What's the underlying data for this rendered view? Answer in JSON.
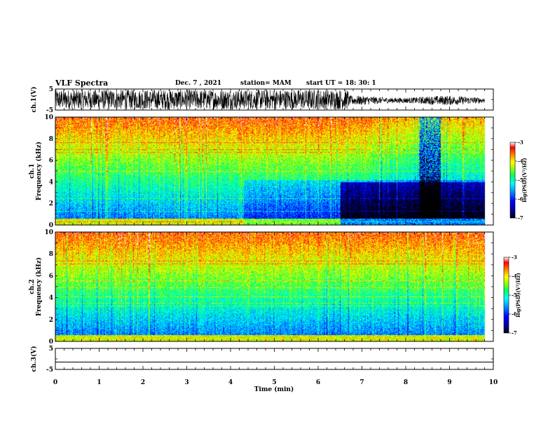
{
  "header": {
    "title": "VLF Spectra",
    "date": "Dec. 7 , 2021",
    "station": "station= MAM",
    "start": "start  UT  =   18: 30: 1"
  },
  "chart_data": [
    {
      "type": "line",
      "name": "ch1-waveform",
      "ylabel": "ch.1(V)",
      "ylim": [
        -5,
        5
      ],
      "yticks": [
        "5",
        "-5"
      ],
      "xlim": [
        0,
        10
      ],
      "description_of_signal": "dense noisy waveform spanning nearly full range until ~6.7 min, then reduced amplitude around -2..2 V"
    },
    {
      "type": "heatmap",
      "name": "ch1-spectrogram",
      "ylabel_top": "ch.1",
      "ylabel": "Frequency  (kHz)",
      "ylim": [
        0,
        10
      ],
      "yticks": [
        "0",
        "2",
        "4",
        "6",
        "8",
        "10"
      ],
      "xlim": [
        0,
        10
      ],
      "data_end_min": 9.8,
      "colorbar": {
        "label": "log(PSD)(V²/Hz)",
        "range": [
          -7,
          -3
        ],
        "ticks": [
          "-3",
          "-4",
          "-5",
          "-6",
          "-7"
        ]
      },
      "notable_features": [
        {
          "x_range_min": [
            6.5,
            9.8
          ],
          "f_range_khz": [
            0,
            4
          ],
          "level": -7
        },
        {
          "x_range_min": [
            8.3,
            8.8
          ],
          "f_range_khz": [
            0,
            10
          ],
          "level": -7
        }
      ]
    },
    {
      "type": "heatmap",
      "name": "ch2-spectrogram",
      "ylabel_top": "ch.2",
      "ylabel": "Frequency  (kHz)",
      "ylim": [
        0,
        10
      ],
      "yticks": [
        "0",
        "2",
        "4",
        "6",
        "8",
        "10"
      ],
      "xlim": [
        0,
        10
      ],
      "data_end_min": 9.8,
      "colorbar": {
        "label": "log(PSD)(V²/Hz)",
        "range": [
          -7,
          -3
        ],
        "ticks": [
          "-3",
          "-4",
          "-5",
          "-6",
          "-7"
        ]
      }
    },
    {
      "type": "line",
      "name": "ch3-waveform",
      "ylabel": "ch.3(V)",
      "ylim": [
        -5,
        5
      ],
      "yticks": [
        "5",
        "-5"
      ],
      "xlim": [
        0,
        10
      ],
      "values_constant": -1.5,
      "xlabel": "Time  (min)",
      "xticks": [
        "0",
        "1",
        "2",
        "3",
        "4",
        "5",
        "6",
        "7",
        "8",
        "9",
        "10"
      ]
    }
  ]
}
